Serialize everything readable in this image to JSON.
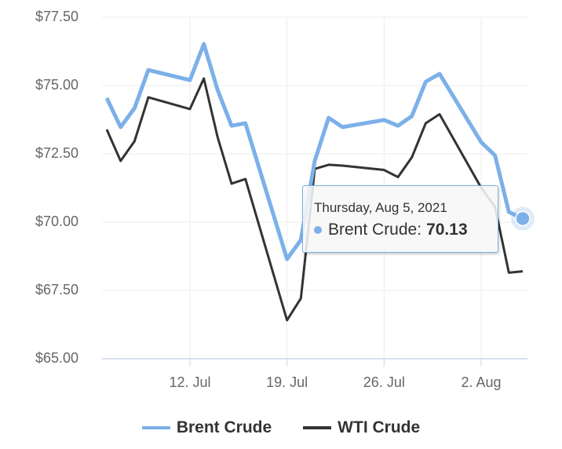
{
  "chart_data": {
    "type": "line",
    "x": [
      "2021-07-06",
      "2021-07-07",
      "2021-07-08",
      "2021-07-09",
      "2021-07-12",
      "2021-07-13",
      "2021-07-14",
      "2021-07-15",
      "2021-07-16",
      "2021-07-19",
      "2021-07-20",
      "2021-07-21",
      "2021-07-22",
      "2021-07-23",
      "2021-07-26",
      "2021-07-27",
      "2021-07-28",
      "2021-07-29",
      "2021-07-30",
      "2021-08-02",
      "2021-08-03",
      "2021-08-04",
      "2021-08-05"
    ],
    "series": [
      {
        "name": "Brent Crude",
        "color": "#7cb0e8",
        "values": [
          74.54,
          73.48,
          74.17,
          75.57,
          75.2,
          76.52,
          74.83,
          73.53,
          73.62,
          68.65,
          69.35,
          72.24,
          73.82,
          73.48,
          73.74,
          73.53,
          73.88,
          75.14,
          75.43,
          72.93,
          72.44,
          70.37,
          70.13
        ]
      },
      {
        "name": "WTI Crude",
        "color": "#333333",
        "values": [
          73.39,
          72.24,
          72.96,
          74.57,
          74.14,
          75.26,
          73.1,
          71.41,
          71.58,
          66.41,
          67.21,
          71.95,
          72.1,
          72.07,
          71.91,
          71.65,
          72.37,
          73.62,
          73.95,
          71.26,
          70.56,
          68.15,
          68.2
        ]
      }
    ],
    "xlim": [
      "2021-07-06",
      "2021-08-05"
    ],
    "xticks": [
      {
        "value": "2021-07-12",
        "label": "12. Jul"
      },
      {
        "value": "2021-07-19",
        "label": "19. Jul"
      },
      {
        "value": "2021-07-26",
        "label": "26. Jul"
      },
      {
        "value": "2021-08-02",
        "label": "2. Aug"
      }
    ],
    "ylim": [
      65,
      77.5
    ],
    "yticks": [
      {
        "value": 65,
        "label": "$65.00"
      },
      {
        "value": 67.5,
        "label": "$67.50"
      },
      {
        "value": 70,
        "label": "$70.00"
      },
      {
        "value": 72.5,
        "label": "$72.50"
      },
      {
        "value": 75,
        "label": "$75.00"
      },
      {
        "value": 77.5,
        "label": "$77.50"
      }
    ],
    "grid": true,
    "tooltip": {
      "title": "Thursday, Aug 5, 2021"
    }
  }
}
